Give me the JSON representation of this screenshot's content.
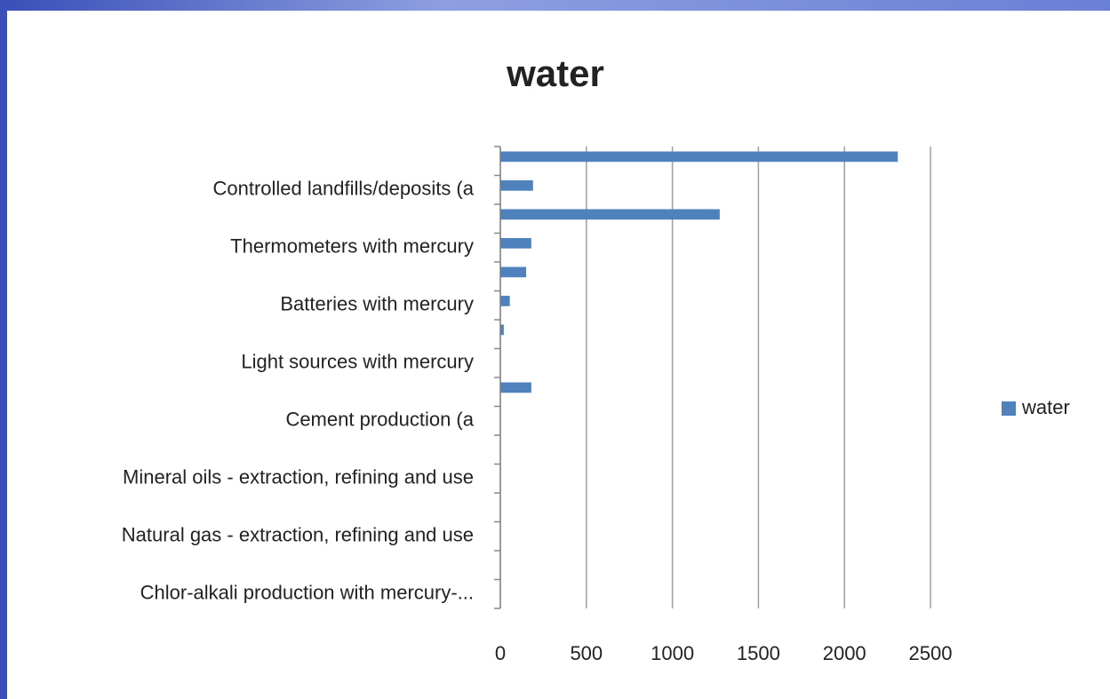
{
  "chart_data": {
    "type": "bar",
    "orientation": "horizontal",
    "title": "water",
    "categories": [
      null,
      "Controlled landfills/deposits (a",
      null,
      "Thermometers with mercury",
      null,
      "Batteries with mercury",
      null,
      "Light sources with mercury",
      null,
      "Cement production (a",
      null,
      "Mineral oils - extraction, refining and use",
      null,
      "Natural gas - extraction, refining and use",
      null,
      "Chlor-alkali production with mercury-..."
    ],
    "series": [
      {
        "name": "water",
        "color": "#4f81bd",
        "values": [
          2310,
          190,
          1275,
          180,
          150,
          55,
          20,
          0,
          180,
          0,
          0,
          0,
          0,
          0,
          0,
          0
        ]
      }
    ],
    "xlim": [
      0,
      2500
    ],
    "xticks": [
      0,
      500,
      1000,
      1500,
      2000,
      2500
    ],
    "grid": true,
    "legend": "right"
  }
}
